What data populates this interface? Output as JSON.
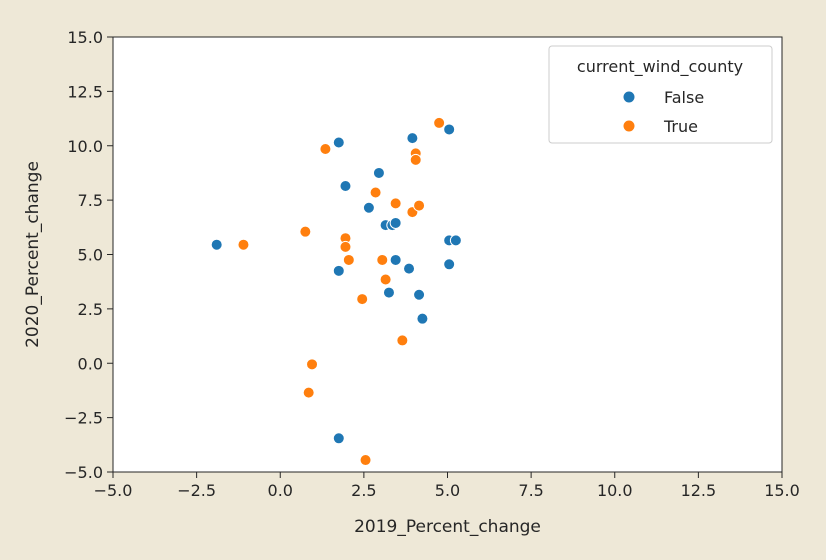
{
  "chart_data": {
    "type": "scatter",
    "xlabel": "2019_Percent_change",
    "ylabel": "2020_Percent_change",
    "xlim": [
      -5.0,
      15.0
    ],
    "ylim": [
      -5.0,
      15.0
    ],
    "xticks": [
      "−5.0",
      "−2.5",
      "0.0",
      "2.5",
      "5.0",
      "7.5",
      "10.0",
      "12.5",
      "15.0"
    ],
    "yticks": [
      "−5.0",
      "−2.5",
      "0.0",
      "2.5",
      "5.0",
      "7.5",
      "10.0",
      "12.5",
      "15.0"
    ],
    "xtick_values": [
      -5.0,
      -2.5,
      0.0,
      2.5,
      5.0,
      7.5,
      10.0,
      12.5,
      15.0
    ],
    "ytick_values": [
      -5.0,
      -2.5,
      0.0,
      2.5,
      5.0,
      7.5,
      10.0,
      12.5,
      15.0
    ],
    "grid": false,
    "legend": {
      "title": "current_wind_county",
      "position": "upper-right"
    },
    "series": [
      {
        "name": "False",
        "color": "#1f77b4",
        "points": [
          {
            "x": -1.9,
            "y": 5.45
          },
          {
            "x": 1.75,
            "y": 10.15
          },
          {
            "x": 1.95,
            "y": 8.15
          },
          {
            "x": 2.95,
            "y": 8.75
          },
          {
            "x": 2.65,
            "y": 7.15
          },
          {
            "x": 3.15,
            "y": 6.35
          },
          {
            "x": 3.35,
            "y": 6.35
          },
          {
            "x": 3.45,
            "y": 6.45
          },
          {
            "x": 3.45,
            "y": 4.75
          },
          {
            "x": 3.85,
            "y": 4.35
          },
          {
            "x": 1.75,
            "y": 4.25
          },
          {
            "x": 3.25,
            "y": 3.25
          },
          {
            "x": 4.15,
            "y": 3.15
          },
          {
            "x": 4.25,
            "y": 2.05
          },
          {
            "x": 3.95,
            "y": 10.35
          },
          {
            "x": 5.05,
            "y": 10.75
          },
          {
            "x": 5.05,
            "y": 5.65
          },
          {
            "x": 5.25,
            "y": 5.65
          },
          {
            "x": 5.05,
            "y": 4.55
          },
          {
            "x": 1.75,
            "y": -3.45
          }
        ]
      },
      {
        "name": "True",
        "color": "#ff7f0e",
        "points": [
          {
            "x": -1.1,
            "y": 5.45
          },
          {
            "x": 0.75,
            "y": 6.05
          },
          {
            "x": 1.35,
            "y": 9.85
          },
          {
            "x": 1.95,
            "y": 5.75
          },
          {
            "x": 1.95,
            "y": 5.35
          },
          {
            "x": 2.05,
            "y": 4.75
          },
          {
            "x": 2.85,
            "y": 7.85
          },
          {
            "x": 3.05,
            "y": 4.75
          },
          {
            "x": 3.15,
            "y": 3.85
          },
          {
            "x": 3.45,
            "y": 7.35
          },
          {
            "x": 3.95,
            "y": 6.95
          },
          {
            "x": 4.15,
            "y": 7.25
          },
          {
            "x": 4.05,
            "y": 9.65
          },
          {
            "x": 4.05,
            "y": 9.35
          },
          {
            "x": 4.75,
            "y": 11.05
          },
          {
            "x": 2.45,
            "y": 2.95
          },
          {
            "x": 3.65,
            "y": 1.05
          },
          {
            "x": 0.95,
            "y": -0.05
          },
          {
            "x": 0.85,
            "y": -1.35
          },
          {
            "x": 2.55,
            "y": -4.45
          }
        ]
      }
    ]
  }
}
